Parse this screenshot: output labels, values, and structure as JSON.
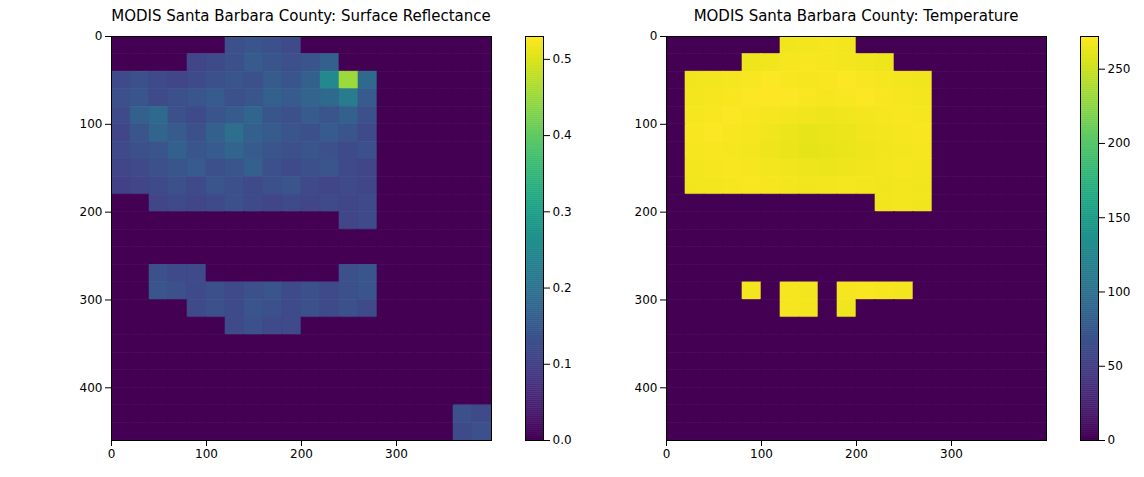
{
  "chart_data": [
    {
      "type": "heatmap",
      "title": "MODIS Santa Barbara County: Surface Reflectance",
      "color": "viridis",
      "xlim": [
        0,
        400
      ],
      "ylim": [
        460,
        0
      ],
      "xticks": [
        0,
        100,
        200,
        300
      ],
      "yticks": [
        0,
        100,
        200,
        300,
        400
      ],
      "x_bins": [
        0,
        20,
        40,
        60,
        80,
        100,
        120,
        140,
        160,
        180,
        200,
        220,
        240,
        260,
        280,
        300,
        320,
        340,
        360,
        380,
        400
      ],
      "y_bins": [
        0,
        20,
        40,
        60,
        80,
        100,
        120,
        140,
        160,
        180,
        200,
        220,
        240,
        260,
        280,
        300,
        320,
        340,
        360,
        380,
        400,
        420,
        440,
        460
      ],
      "cells": [
        [
          0,
          0,
          0,
          0,
          0,
          0,
          0.13,
          0.14,
          0.13,
          0.12,
          0,
          0,
          0,
          0,
          0,
          0,
          0,
          0,
          0,
          0
        ],
        [
          0,
          0,
          0,
          0,
          0.11,
          0.12,
          0.13,
          0.15,
          0.14,
          0.13,
          0.14,
          0.16,
          0,
          0,
          0,
          0,
          0,
          0,
          0,
          0
        ],
        [
          0.12,
          0.13,
          0.12,
          0.11,
          0.12,
          0.13,
          0.14,
          0.13,
          0.15,
          0.14,
          0.16,
          0.25,
          0.45,
          0.18,
          0,
          0,
          0,
          0,
          0,
          0
        ],
        [
          0.13,
          0.14,
          0.12,
          0.13,
          0.14,
          0.15,
          0.13,
          0.14,
          0.16,
          0.15,
          0.17,
          0.18,
          0.22,
          0.15,
          0,
          0,
          0,
          0,
          0,
          0
        ],
        [
          0.12,
          0.16,
          0.18,
          0.13,
          0.12,
          0.14,
          0.15,
          0.17,
          0.14,
          0.13,
          0.15,
          0.14,
          0.16,
          0.13,
          0,
          0,
          0,
          0,
          0,
          0
        ],
        [
          0.11,
          0.14,
          0.17,
          0.15,
          0.13,
          0.16,
          0.19,
          0.16,
          0.15,
          0.14,
          0.13,
          0.15,
          0.14,
          0.12,
          0,
          0,
          0,
          0,
          0,
          0
        ],
        [
          0.12,
          0.13,
          0.14,
          0.16,
          0.14,
          0.15,
          0.17,
          0.15,
          0.14,
          0.13,
          0.14,
          0.13,
          0.12,
          0.13,
          0,
          0,
          0,
          0,
          0,
          0
        ],
        [
          0.11,
          0.12,
          0.13,
          0.14,
          0.15,
          0.13,
          0.14,
          0.16,
          0.13,
          0.12,
          0.13,
          0.14,
          0.12,
          0.11,
          0,
          0,
          0,
          0,
          0,
          0
        ],
        [
          0.1,
          0.11,
          0.12,
          0.13,
          0.12,
          0.14,
          0.13,
          0.12,
          0.13,
          0.14,
          0.12,
          0.11,
          0.12,
          0.11,
          0,
          0,
          0,
          0,
          0,
          0
        ],
        [
          0,
          0,
          0.11,
          0.12,
          0.11,
          0.12,
          0.13,
          0.12,
          0.11,
          0.12,
          0.11,
          0.12,
          0.11,
          0.12,
          0,
          0,
          0,
          0,
          0,
          0
        ],
        [
          0,
          0,
          0,
          0,
          0,
          0,
          0,
          0,
          0,
          0,
          0,
          0,
          0.11,
          0.12,
          0,
          0,
          0,
          0,
          0,
          0
        ],
        [
          0,
          0,
          0,
          0,
          0,
          0,
          0,
          0,
          0,
          0,
          0,
          0,
          0,
          0,
          0,
          0,
          0,
          0,
          0,
          0
        ],
        [
          0,
          0,
          0,
          0,
          0,
          0,
          0,
          0,
          0,
          0,
          0,
          0,
          0,
          0,
          0,
          0,
          0,
          0,
          0,
          0
        ],
        [
          0,
          0,
          0.13,
          0.12,
          0.12,
          0,
          0,
          0,
          0,
          0,
          0,
          0,
          0.13,
          0.14,
          0,
          0,
          0,
          0,
          0,
          0
        ],
        [
          0,
          0,
          0.14,
          0.13,
          0.12,
          0.13,
          0.12,
          0.13,
          0.14,
          0.12,
          0.13,
          0.12,
          0.13,
          0.14,
          0,
          0,
          0,
          0,
          0,
          0
        ],
        [
          0,
          0,
          0,
          0,
          0.12,
          0.13,
          0.12,
          0.14,
          0.13,
          0.12,
          0.13,
          0.12,
          0.13,
          0.12,
          0,
          0,
          0,
          0,
          0,
          0
        ],
        [
          0,
          0,
          0,
          0,
          0,
          0,
          0.12,
          0.13,
          0.12,
          0.12,
          0,
          0,
          0,
          0,
          0,
          0,
          0,
          0,
          0,
          0
        ],
        [
          0,
          0,
          0,
          0,
          0,
          0,
          0,
          0,
          0,
          0,
          0,
          0,
          0,
          0,
          0,
          0,
          0,
          0,
          0,
          0
        ],
        [
          0,
          0,
          0,
          0,
          0,
          0,
          0,
          0,
          0,
          0,
          0,
          0,
          0,
          0,
          0,
          0,
          0,
          0,
          0,
          0
        ],
        [
          0,
          0,
          0,
          0,
          0,
          0,
          0,
          0,
          0,
          0,
          0,
          0,
          0,
          0,
          0,
          0,
          0,
          0,
          0,
          0
        ],
        [
          0,
          0,
          0,
          0,
          0,
          0,
          0,
          0,
          0,
          0,
          0,
          0,
          0,
          0,
          0,
          0,
          0,
          0,
          0,
          0
        ],
        [
          0,
          0,
          0,
          0,
          0,
          0,
          0,
          0,
          0,
          0,
          0,
          0,
          0,
          0,
          0,
          0,
          0,
          0,
          0.13,
          0.12
        ],
        [
          0,
          0,
          0,
          0,
          0,
          0,
          0,
          0,
          0,
          0,
          0,
          0,
          0,
          0,
          0,
          0,
          0,
          0,
          0.12,
          0.13
        ]
      ],
      "colorbar": {
        "range": [
          0,
          0.53
        ],
        "ticks": [
          {
            "value": 0,
            "label": "0.0"
          },
          {
            "value": 0.1,
            "label": "0.1"
          },
          {
            "value": 0.2,
            "label": "0.2"
          },
          {
            "value": 0.3,
            "label": "0.3"
          },
          {
            "value": 0.4,
            "label": "0.4"
          },
          {
            "value": 0.5,
            "label": "0.5"
          }
        ]
      }
    },
    {
      "type": "heatmap",
      "title": "MODIS Santa Barbara County: Temperature",
      "color": "viridis",
      "xlim": [
        0,
        400
      ],
      "ylim": [
        460,
        0
      ],
      "xticks": [
        0,
        100,
        200,
        300
      ],
      "yticks": [
        0,
        100,
        200,
        300,
        400
      ],
      "x_bins": [
        0,
        20,
        40,
        60,
        80,
        100,
        120,
        140,
        160,
        180,
        200,
        220,
        240,
        260,
        280,
        300,
        320,
        340,
        360,
        380,
        400
      ],
      "y_bins": [
        0,
        20,
        40,
        60,
        80,
        100,
        120,
        140,
        160,
        180,
        200,
        220,
        240,
        260,
        280,
        300,
        320,
        340,
        360,
        380,
        400,
        420,
        440,
        460
      ],
      "cells": [
        [
          0,
          0,
          0,
          0,
          0,
          0,
          266,
          267,
          268,
          267,
          0,
          0,
          0,
          0,
          0,
          0,
          0,
          0,
          0,
          0
        ],
        [
          0,
          0,
          0,
          0,
          265,
          266,
          268,
          269,
          268,
          267,
          266,
          265,
          0,
          0,
          0,
          0,
          0,
          0,
          0,
          0
        ],
        [
          0,
          266,
          267,
          268,
          269,
          270,
          269,
          268,
          269,
          270,
          269,
          268,
          267,
          266,
          0,
          0,
          0,
          0,
          0,
          0
        ],
        [
          0,
          267,
          268,
          269,
          270,
          271,
          270,
          269,
          268,
          269,
          270,
          269,
          268,
          267,
          0,
          0,
          0,
          0,
          0,
          0
        ],
        [
          0,
          268,
          269,
          270,
          269,
          268,
          267,
          266,
          265,
          266,
          267,
          268,
          269,
          268,
          0,
          0,
          0,
          0,
          0,
          0
        ],
        [
          0,
          269,
          270,
          269,
          268,
          266,
          264,
          262,
          263,
          264,
          266,
          267,
          268,
          269,
          0,
          0,
          0,
          0,
          0,
          0
        ],
        [
          0,
          268,
          269,
          268,
          267,
          265,
          263,
          261,
          262,
          263,
          265,
          266,
          267,
          268,
          0,
          0,
          0,
          0,
          0,
          0
        ],
        [
          0,
          267,
          268,
          269,
          268,
          267,
          266,
          265,
          264,
          265,
          266,
          267,
          268,
          267,
          0,
          0,
          0,
          0,
          0,
          0
        ],
        [
          0,
          266,
          267,
          268,
          269,
          268,
          267,
          266,
          267,
          268,
          267,
          266,
          267,
          266,
          0,
          0,
          0,
          0,
          0,
          0
        ],
        [
          0,
          0,
          0,
          0,
          0,
          0,
          0,
          0,
          0,
          0,
          0,
          266,
          267,
          266,
          0,
          0,
          0,
          0,
          0,
          0
        ],
        [
          0,
          0,
          0,
          0,
          0,
          0,
          0,
          0,
          0,
          0,
          0,
          0,
          0,
          0,
          0,
          0,
          0,
          0,
          0,
          0
        ],
        [
          0,
          0,
          0,
          0,
          0,
          0,
          0,
          0,
          0,
          0,
          0,
          0,
          0,
          0,
          0,
          0,
          0,
          0,
          0,
          0
        ],
        [
          0,
          0,
          0,
          0,
          0,
          0,
          0,
          0,
          0,
          0,
          0,
          0,
          0,
          0,
          0,
          0,
          0,
          0,
          0,
          0
        ],
        [
          0,
          0,
          0,
          0,
          0,
          0,
          0,
          0,
          0,
          0,
          0,
          0,
          0,
          0,
          0,
          0,
          0,
          0,
          0,
          0
        ],
        [
          0,
          0,
          0,
          0,
          267,
          0,
          268,
          267,
          0,
          268,
          269,
          268,
          267,
          0,
          0,
          0,
          0,
          0,
          0,
          0
        ],
        [
          0,
          0,
          0,
          0,
          0,
          0,
          268,
          267,
          0,
          266,
          0,
          0,
          0,
          0,
          0,
          0,
          0,
          0,
          0,
          0
        ],
        [
          0,
          0,
          0,
          0,
          0,
          0,
          0,
          0,
          0,
          0,
          0,
          0,
          0,
          0,
          0,
          0,
          0,
          0,
          0,
          0
        ],
        [
          0,
          0,
          0,
          0,
          0,
          0,
          0,
          0,
          0,
          0,
          0,
          0,
          0,
          0,
          0,
          0,
          0,
          0,
          0,
          0
        ],
        [
          0,
          0,
          0,
          0,
          0,
          0,
          0,
          0,
          0,
          0,
          0,
          0,
          0,
          0,
          0,
          0,
          0,
          0,
          0,
          0
        ],
        [
          0,
          0,
          0,
          0,
          0,
          0,
          0,
          0,
          0,
          0,
          0,
          0,
          0,
          0,
          0,
          0,
          0,
          0,
          0,
          0
        ],
        [
          0,
          0,
          0,
          0,
          0,
          0,
          0,
          0,
          0,
          0,
          0,
          0,
          0,
          0,
          0,
          0,
          0,
          0,
          0,
          0
        ],
        [
          0,
          0,
          0,
          0,
          0,
          0,
          0,
          0,
          0,
          0,
          0,
          0,
          0,
          0,
          0,
          0,
          0,
          0,
          0,
          0
        ],
        [
          0,
          0,
          0,
          0,
          0,
          0,
          0,
          0,
          0,
          0,
          0,
          0,
          0,
          0,
          0,
          0,
          0,
          0,
          0,
          0
        ]
      ],
      "colorbar": {
        "range": [
          0,
          272
        ],
        "ticks": [
          0,
          50,
          100,
          150,
          200,
          250
        ]
      }
    }
  ]
}
